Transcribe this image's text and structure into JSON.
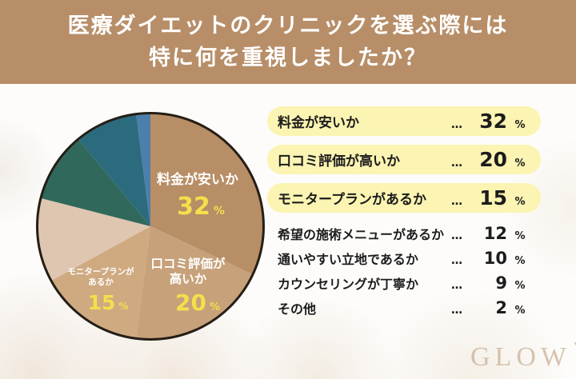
{
  "header": {
    "title_line1": "医療ダイエットのクリニックを選ぶ際には",
    "title_line2": "特に何を重視しましたか？"
  },
  "chart_data": {
    "type": "pie",
    "title": "医療ダイエットのクリニックを選ぶ際には特に何を重視しましたか？",
    "unit": "%",
    "start_angle_deg": 0,
    "direction": "clockwise",
    "categories": [
      "料金が安いか",
      "口コミ評価が高いか",
      "モニタープランがあるか",
      "希望の施術メニューがあるか",
      "通いやすい立地であるか",
      "カウンセリングが丁寧か",
      "その他"
    ],
    "values": [
      32,
      20,
      15,
      12,
      10,
      9,
      2
    ],
    "colors": [
      "#b88e66",
      "#c6a179",
      "#cfaa81",
      "#dfc6b0",
      "#30695b",
      "#2c6b7e",
      "#4c7fab"
    ],
    "outline_color": "#251e16",
    "label_text_color": "#ffffff",
    "label_value_color": "#f5df4d",
    "labeled_slices": [
      {
        "lines": [
          "料金が安いか",
          ""
        ],
        "value": "32",
        "unit": "%"
      },
      {
        "lines": [
          "口コミ評価が",
          "高いか"
        ],
        "value": "20",
        "unit": "%"
      },
      {
        "lines": [
          "モニタープランが",
          "あるか"
        ],
        "value": "15",
        "unit": "%"
      }
    ],
    "legend_position": "right-list"
  },
  "list": {
    "highlight_bg": "#fbf4b2",
    "rows": [
      {
        "label": "料金が安いか",
        "dots": "…",
        "value": "32",
        "unit": "%"
      },
      {
        "label": "口コミ評価が高いか",
        "dots": "…",
        "value": "20",
        "unit": "%"
      },
      {
        "label": "モニタープランがあるか",
        "dots": "…",
        "value": "15",
        "unit": "%"
      },
      {
        "label": "希望の施術メニューがあるか",
        "dots": "…",
        "value": "12",
        "unit": "%"
      },
      {
        "label": "通いやすい立地であるか",
        "dots": "…",
        "value": "10",
        "unit": "%"
      },
      {
        "label": "カウンセリングが丁寧か",
        "dots": "…",
        "value": "9",
        "unit": "%"
      },
      {
        "label": "その他",
        "dots": "…",
        "value": "2",
        "unit": "%"
      }
    ]
  },
  "watermark": {
    "text": "GLOW"
  },
  "theme": {
    "header_bg": "#b78e68",
    "header_text": "#ffffff",
    "page_bg": "#fdfcfa",
    "text_color": "#1c1c1c"
  }
}
